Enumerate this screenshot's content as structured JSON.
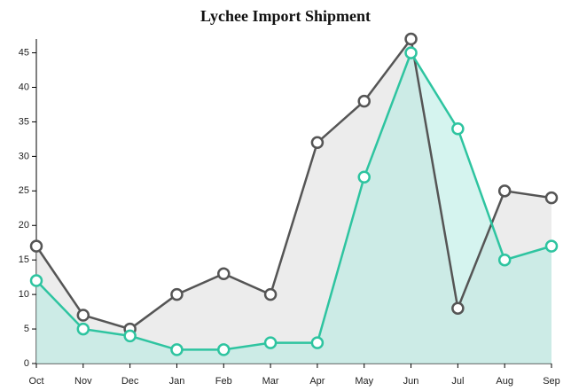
{
  "chart_data": {
    "type": "area",
    "title": "Lychee Import Shipment",
    "categories": [
      "Oct",
      "Nov",
      "Dec",
      "Jan",
      "Feb",
      "Mar",
      "Apr",
      "May",
      "Jun",
      "Jul",
      "Aug",
      "Sep"
    ],
    "series": [
      {
        "color": "#555555",
        "fill": "#dcdcdc",
        "values": [
          17,
          7,
          5,
          10,
          13,
          10,
          32,
          38,
          47,
          8,
          25,
          24
        ]
      },
      {
        "color": "#2ec4a0",
        "fill": "#b3ebe1",
        "values": [
          12,
          5,
          4,
          2,
          2,
          3,
          3,
          27,
          45,
          34,
          15,
          17
        ]
      }
    ],
    "ylim": [
      0,
      47
    ],
    "yticks": [
      0,
      5,
      10,
      15,
      20,
      25,
      30,
      35,
      40,
      45
    ],
    "grid": false
  }
}
